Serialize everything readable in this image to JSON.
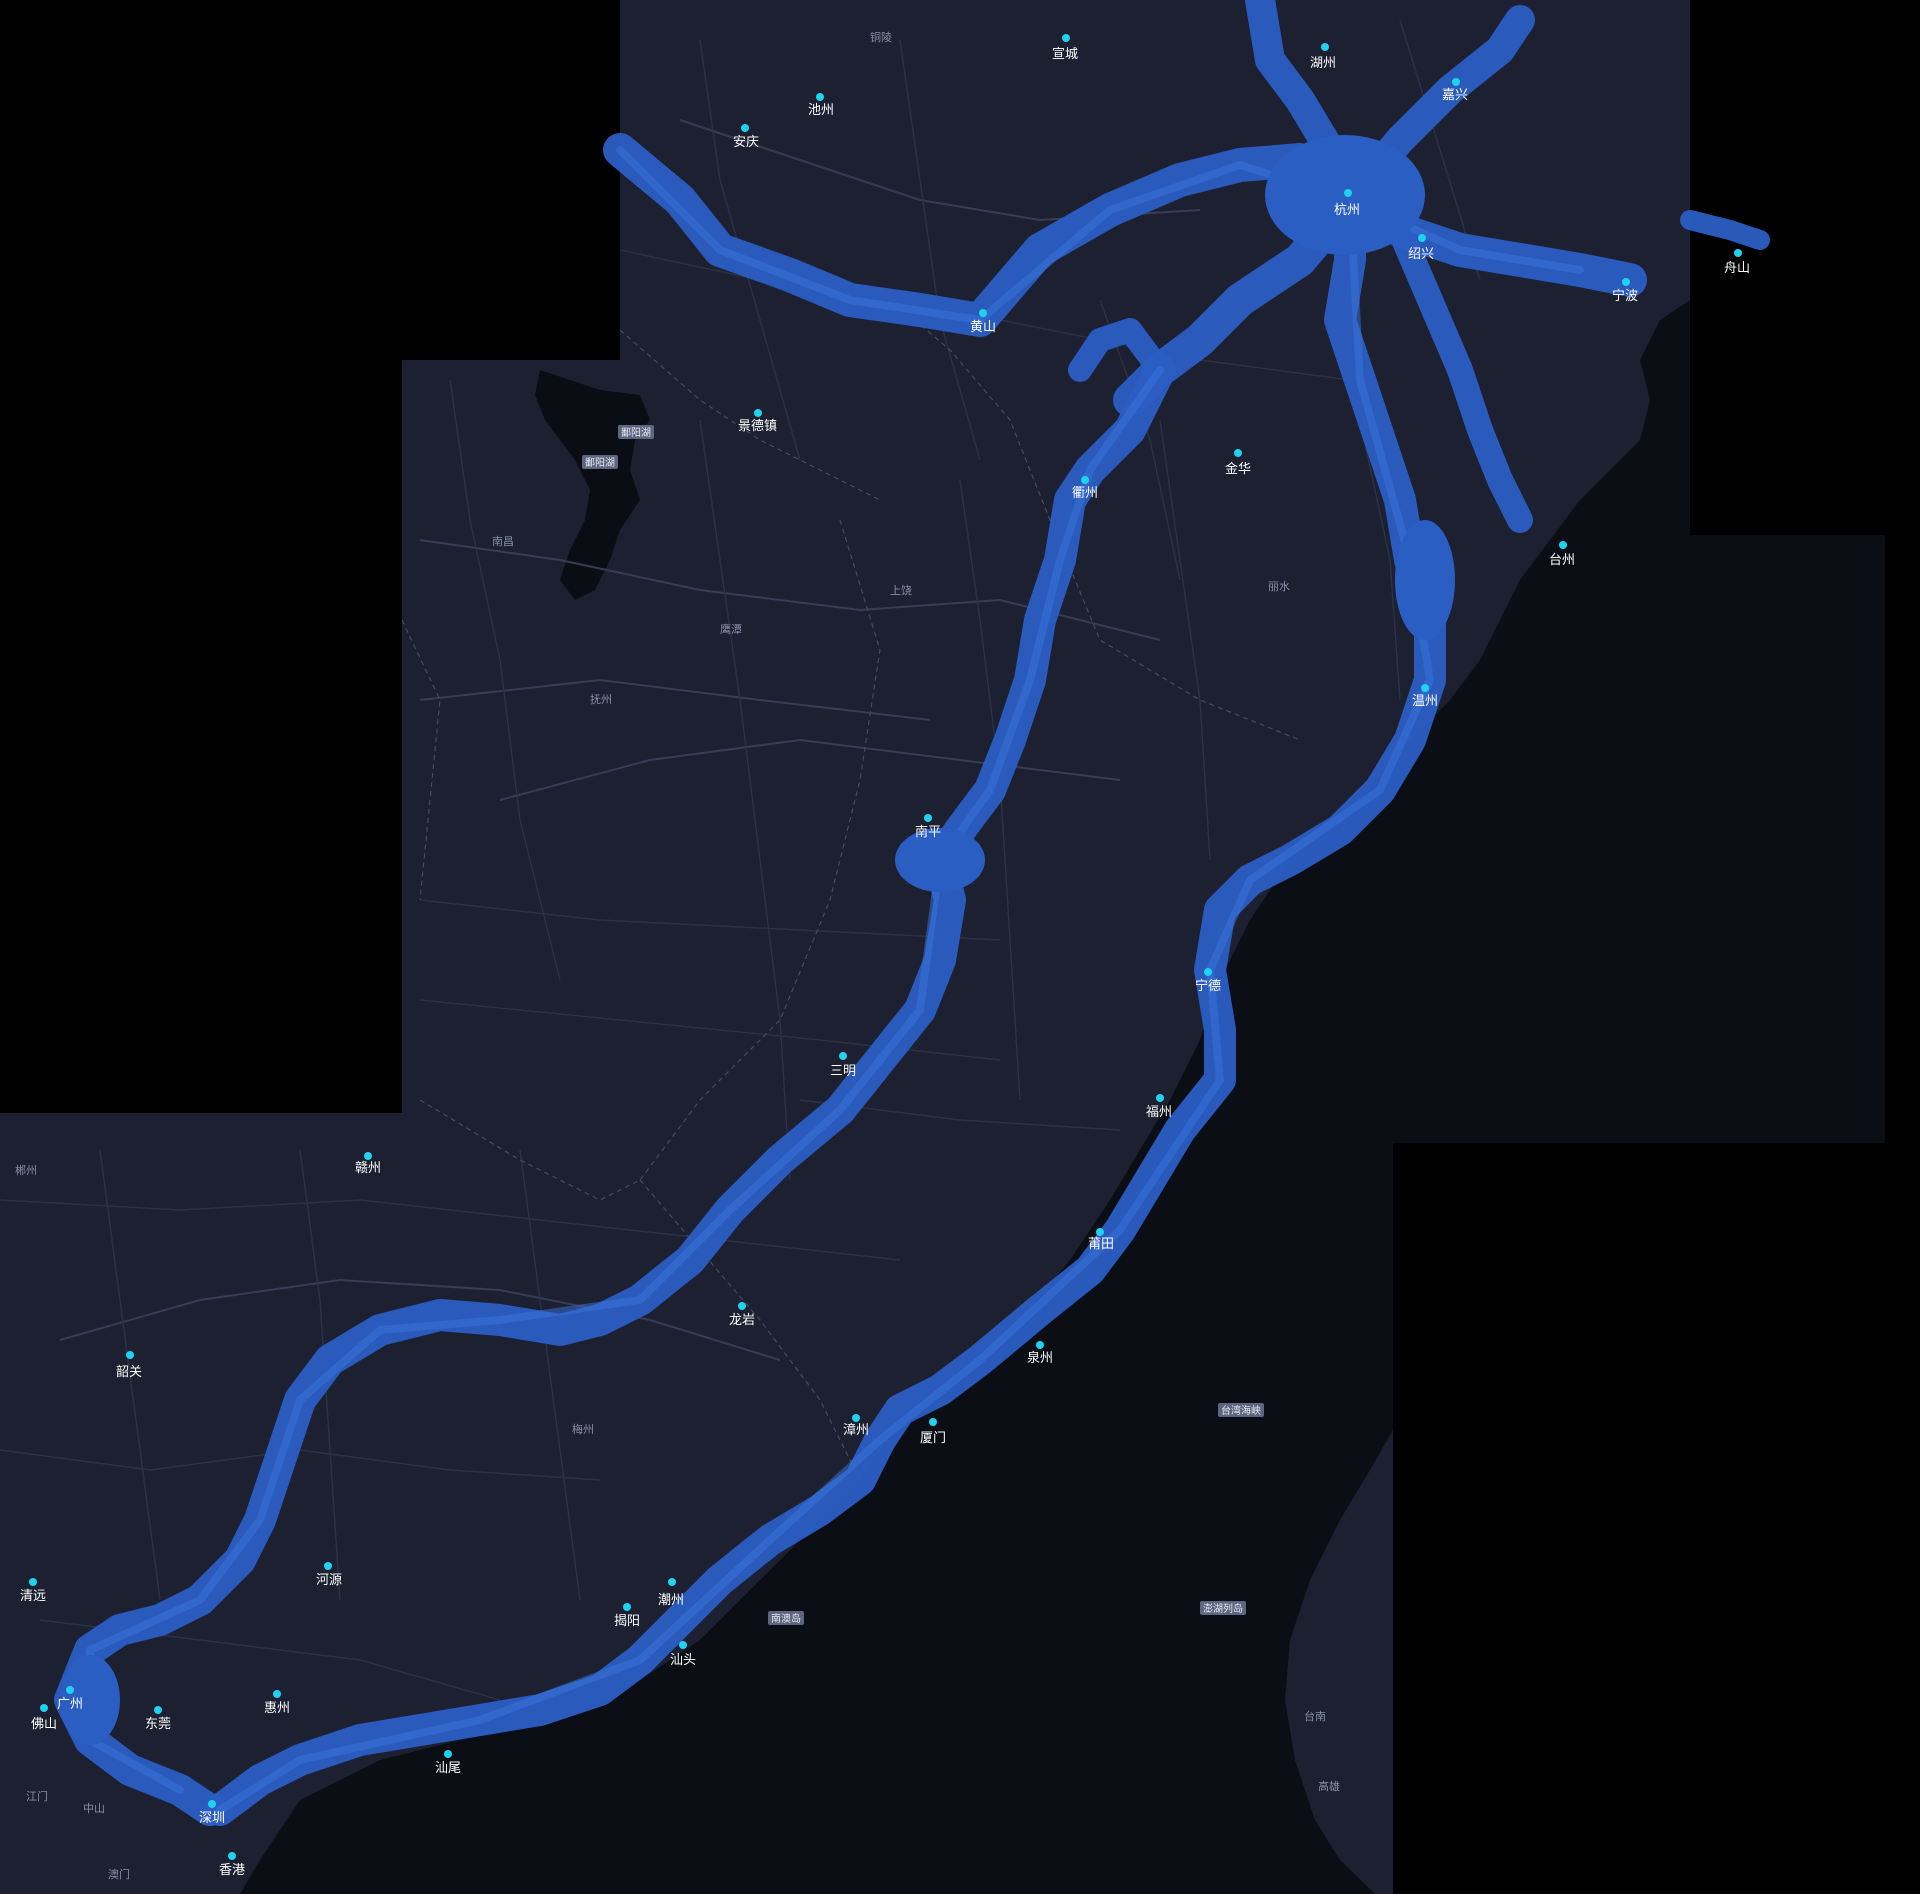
{
  "colors": {
    "land": "#1c2031",
    "sea": "#0b0e15",
    "coverage": "#2b5ec3",
    "city_dot": "#1fd3f0",
    "background": "#000000"
  },
  "cities": [
    {
      "name": "宣城",
      "dot": true
    },
    {
      "name": "湖州",
      "dot": true
    },
    {
      "name": "嘉兴",
      "dot": true
    },
    {
      "name": "池州",
      "dot": true
    },
    {
      "name": "安庆",
      "dot": true
    },
    {
      "name": "杭州",
      "dot": true
    },
    {
      "name": "绍兴",
      "dot": true
    },
    {
      "name": "舟山",
      "dot": true
    },
    {
      "name": "宁波",
      "dot": true
    },
    {
      "name": "黄山",
      "dot": true
    },
    {
      "name": "景德镇",
      "dot": true
    },
    {
      "name": "金华",
      "dot": true
    },
    {
      "name": "衢州",
      "dot": true
    },
    {
      "name": "台州",
      "dot": true
    },
    {
      "name": "温州",
      "dot": true
    },
    {
      "name": "南平",
      "dot": true
    },
    {
      "name": "宁德",
      "dot": true
    },
    {
      "name": "三明",
      "dot": true
    },
    {
      "name": "福州",
      "dot": true
    },
    {
      "name": "赣州",
      "dot": true
    },
    {
      "name": "莆田",
      "dot": true
    },
    {
      "name": "龙岩",
      "dot": true
    },
    {
      "name": "泉州",
      "dot": true
    },
    {
      "name": "韶关",
      "dot": true
    },
    {
      "name": "漳州",
      "dot": true
    },
    {
      "name": "厦门",
      "dot": true
    },
    {
      "name": "清远",
      "dot": true
    },
    {
      "name": "河源",
      "dot": true
    },
    {
      "name": "潮州",
      "dot": true
    },
    {
      "name": "揭阳",
      "dot": true
    },
    {
      "name": "汕头",
      "dot": true
    },
    {
      "name": "广州",
      "dot": true
    },
    {
      "name": "惠州",
      "dot": true
    },
    {
      "name": "佛山",
      "dot": true
    },
    {
      "name": "东莞",
      "dot": true
    },
    {
      "name": "汕尾",
      "dot": true
    },
    {
      "name": "深圳",
      "dot": true
    },
    {
      "name": "香港",
      "dot": true
    }
  ],
  "minor_labels": [
    "铜陵",
    "南昌",
    "上饶",
    "鹰潭",
    "抚州",
    "丽水",
    "郴州",
    "梅州",
    "江门",
    "中山",
    "澳门",
    "台南",
    "高雄"
  ],
  "boxed_labels": [
    "鄱阳湖",
    "台湾海峡",
    "南澳岛",
    "澎湖列岛"
  ]
}
